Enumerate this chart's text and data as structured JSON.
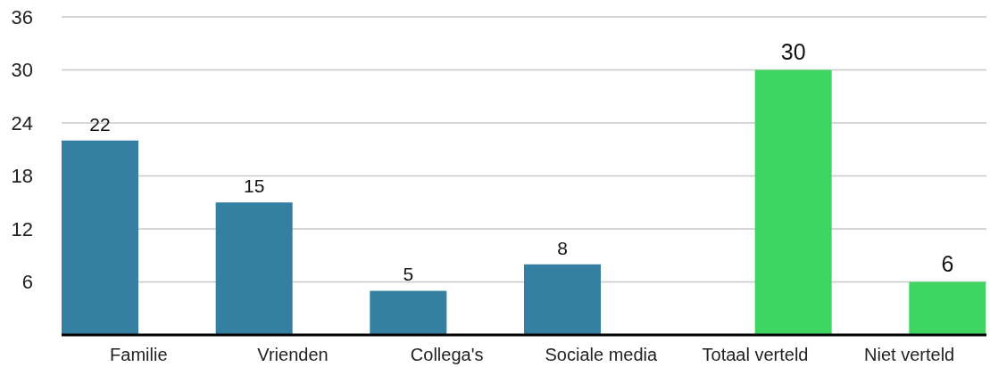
{
  "chart_data": {
    "type": "bar",
    "categories": [
      "Familie",
      "Vrienden",
      "Collega's",
      "Sociale media",
      "Totaal verteld",
      "Niet verteld"
    ],
    "series": [
      {
        "color": "#3580a2",
        "values": [
          22,
          15,
          5,
          8,
          null,
          null
        ]
      },
      {
        "color": "#3fd562",
        "values": [
          null,
          null,
          null,
          null,
          30,
          6
        ]
      }
    ],
    "ylim": [
      0,
      36
    ],
    "yticks": [
      6,
      12,
      18,
      24,
      30,
      36
    ],
    "grid": "y",
    "data_labels": true
  }
}
